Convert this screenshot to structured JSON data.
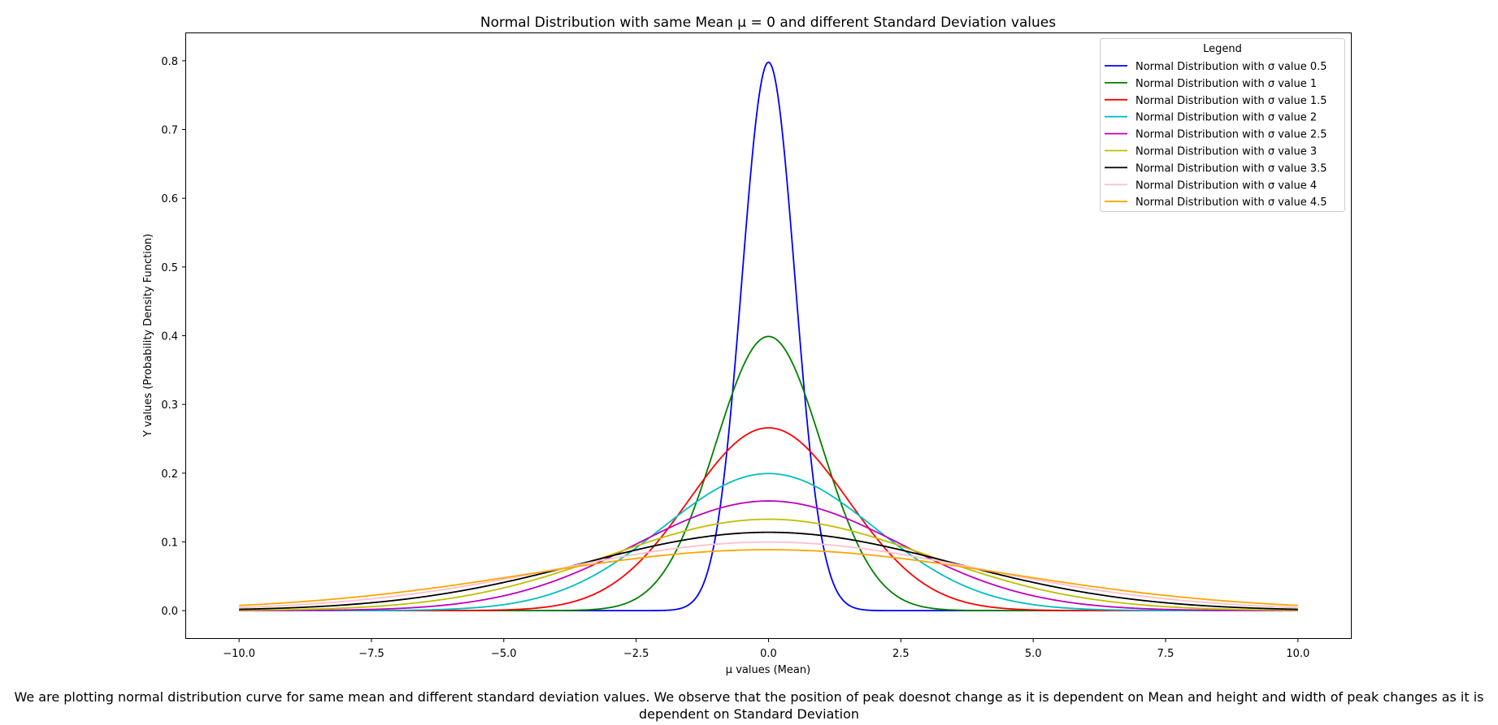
{
  "chart_data": {
    "type": "line",
    "title": "Normal Distribution with same Mean μ = 0 and different Standard Deviation values",
    "xlabel": "μ values (Mean)",
    "ylabel": "Y values (Probability Density Function)",
    "xlim": [
      -11,
      11
    ],
    "ylim": [
      -0.04,
      0.84
    ],
    "x_range": [
      -10,
      10
    ],
    "xticks": [
      -10.0,
      -7.5,
      -5.0,
      -2.5,
      0.0,
      2.5,
      5.0,
      7.5,
      10.0
    ],
    "xtick_labels": [
      "−10.0",
      "−7.5",
      "−5.0",
      "−2.5",
      "0.0",
      "2.5",
      "5.0",
      "7.5",
      "10.0"
    ],
    "yticks": [
      0.0,
      0.1,
      0.2,
      0.3,
      0.4,
      0.5,
      0.6,
      0.7,
      0.8
    ],
    "ytick_labels": [
      "0.0",
      "0.1",
      "0.2",
      "0.3",
      "0.4",
      "0.5",
      "0.6",
      "0.7",
      "0.8"
    ],
    "grid": false,
    "mean": 0,
    "legend": {
      "title": "Legend",
      "placement": "top-right"
    },
    "series": [
      {
        "name": "Normal Distribution with σ value 0.5",
        "sigma": 0.5,
        "color": "#0000ff",
        "peak": 0.798
      },
      {
        "name": "Normal Distribution with σ value 1",
        "sigma": 1,
        "color": "#008000",
        "peak": 0.399
      },
      {
        "name": "Normal Distribution with σ value 1.5",
        "sigma": 1.5,
        "color": "#ff0000",
        "peak": 0.266
      },
      {
        "name": "Normal Distribution with σ value 2",
        "sigma": 2,
        "color": "#00bfbf",
        "peak": 0.199
      },
      {
        "name": "Normal Distribution with σ value 2.5",
        "sigma": 2.5,
        "color": "#bf00bf",
        "peak": 0.16
      },
      {
        "name": "Normal Distribution with σ value 3",
        "sigma": 3,
        "color": "#bfbf00",
        "peak": 0.133
      },
      {
        "name": "Normal Distribution with σ value 3.5",
        "sigma": 3.5,
        "color": "#000000",
        "peak": 0.114
      },
      {
        "name": "Normal Distribution with σ value 4",
        "sigma": 4,
        "color": "#ffc0cb",
        "peak": 0.1
      },
      {
        "name": "Normal Distribution with σ value 4.5",
        "sigma": 4.5,
        "color": "#ffa500",
        "peak": 0.089
      }
    ]
  },
  "caption": "We are plotting normal distribution curve for same mean and different standard deviation values. We observe that the position of peak doesnot change as it is dependent on Mean and height and width of peak changes as it is dependent on Standard Deviation"
}
